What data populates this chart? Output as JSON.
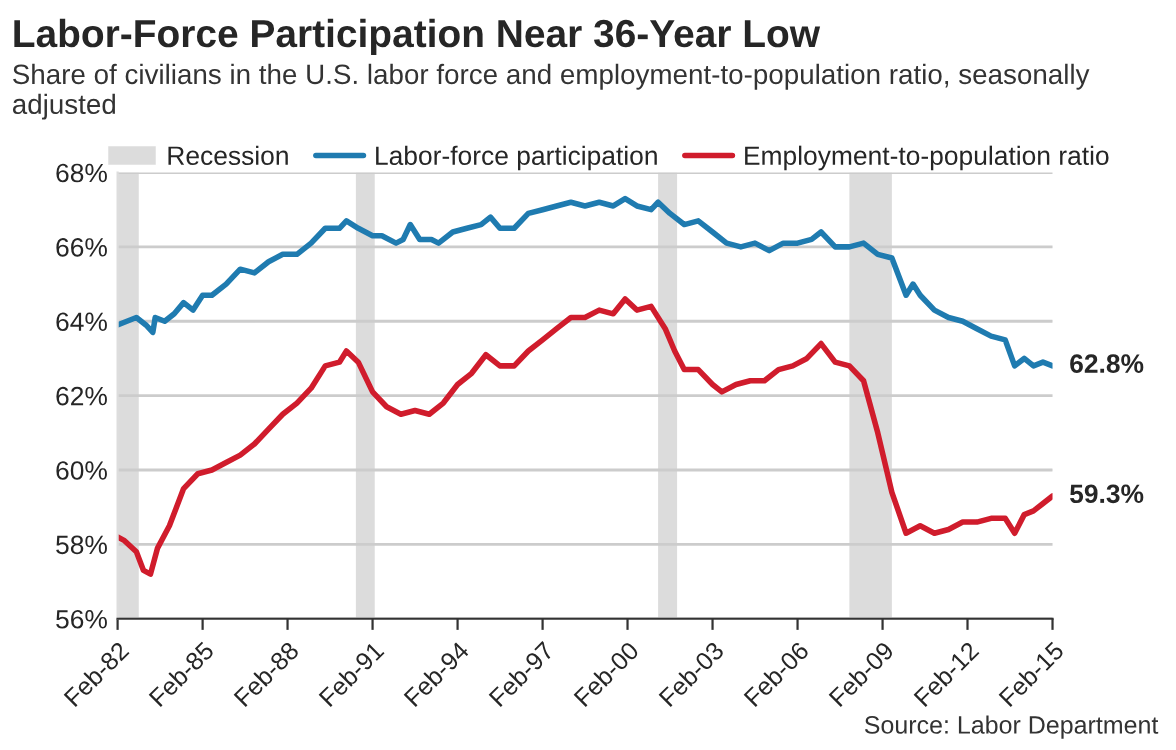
{
  "chart_data": {
    "type": "line",
    "title": "Labor-Force Participation Near 36-Year Low",
    "subtitle": "Share of civilians in the U.S. labor force and employment-to-population ratio, seasonally adjusted",
    "annotations": [
      {
        "text": "62.8%",
        "x": "2015-02",
        "y": 62.8
      },
      {
        "text": "59.3%",
        "x": "2015-02",
        "y": 59.3
      },
      "Source: Labor Department"
    ],
    "series": [
      {
        "name": "Labor-force participation",
        "color": "#1f7bb0",
        "x": [
          "1982-02",
          "1982-06",
          "1982-10",
          "1983-02",
          "1983-05",
          "1983-06",
          "1983-10",
          "1984-02",
          "1984-06",
          "1984-10",
          "1985-02",
          "1985-06",
          "1985-12",
          "1986-06",
          "1986-12",
          "1987-06",
          "1987-12",
          "1988-06",
          "1988-12",
          "1989-06",
          "1989-12",
          "1990-03",
          "1990-08",
          "1991-02",
          "1991-06",
          "1991-12",
          "1992-03",
          "1992-06",
          "1992-10",
          "1993-03",
          "1993-06",
          "1993-12",
          "1994-06",
          "1994-12",
          "1995-04",
          "1995-08",
          "1996-02",
          "1996-08",
          "1997-02",
          "1997-08",
          "1998-02",
          "1998-08",
          "1999-02",
          "1999-08",
          "2000-01",
          "2000-06",
          "2000-12",
          "2001-03",
          "2001-08",
          "2002-02",
          "2002-08",
          "2003-02",
          "2003-08",
          "2004-02",
          "2004-08",
          "2005-02",
          "2005-08",
          "2006-02",
          "2006-08",
          "2006-12",
          "2007-06",
          "2007-12",
          "2008-06",
          "2008-12",
          "2009-06",
          "2009-12",
          "2010-03",
          "2010-06",
          "2010-12",
          "2011-06",
          "2011-12",
          "2012-06",
          "2012-12",
          "2013-06",
          "2013-10",
          "2014-02",
          "2014-06",
          "2014-10",
          "2015-02"
        ],
        "values": [
          63.9,
          64.0,
          64.1,
          63.9,
          63.7,
          64.1,
          64.0,
          64.2,
          64.5,
          64.3,
          64.7,
          64.7,
          65.0,
          65.4,
          65.3,
          65.6,
          65.8,
          65.8,
          66.1,
          66.5,
          66.5,
          66.7,
          66.5,
          66.3,
          66.3,
          66.1,
          66.2,
          66.6,
          66.2,
          66.2,
          66.1,
          66.4,
          66.5,
          66.6,
          66.8,
          66.5,
          66.5,
          66.9,
          67.0,
          67.1,
          67.2,
          67.1,
          67.2,
          67.1,
          67.3,
          67.1,
          67.0,
          67.2,
          66.9,
          66.6,
          66.7,
          66.4,
          66.1,
          66.0,
          66.1,
          65.9,
          66.1,
          66.1,
          66.2,
          66.4,
          66.0,
          66.0,
          66.1,
          65.8,
          65.7,
          64.7,
          65.0,
          64.7,
          64.3,
          64.1,
          64.0,
          63.8,
          63.6,
          63.5,
          62.8,
          63.0,
          62.8,
          62.9,
          62.8
        ]
      },
      {
        "name": "Employment-to-population ratio",
        "color": "#d01c2c",
        "x": [
          "1982-02",
          "1982-05",
          "1982-10",
          "1983-01",
          "1983-04",
          "1983-07",
          "1983-12",
          "1984-06",
          "1984-12",
          "1985-06",
          "1985-12",
          "1986-06",
          "1986-12",
          "1987-06",
          "1987-12",
          "1988-06",
          "1988-12",
          "1989-06",
          "1989-12",
          "1990-03",
          "1990-08",
          "1991-02",
          "1991-08",
          "1992-02",
          "1992-08",
          "1993-02",
          "1993-08",
          "1994-02",
          "1994-08",
          "1995-02",
          "1995-08",
          "1996-02",
          "1996-08",
          "1997-02",
          "1997-08",
          "1998-02",
          "1998-08",
          "1999-02",
          "1999-08",
          "2000-01",
          "2000-06",
          "2000-12",
          "2001-06",
          "2001-10",
          "2002-02",
          "2002-08",
          "2003-02",
          "2003-06",
          "2003-12",
          "2004-06",
          "2004-12",
          "2005-06",
          "2005-12",
          "2006-06",
          "2006-12",
          "2007-06",
          "2007-12",
          "2008-06",
          "2008-12",
          "2009-06",
          "2009-12",
          "2010-06",
          "2010-12",
          "2011-06",
          "2011-12",
          "2012-06",
          "2012-12",
          "2013-06",
          "2013-10",
          "2014-02",
          "2014-06",
          "2014-10",
          "2015-02"
        ],
        "values": [
          58.2,
          58.1,
          57.8,
          57.3,
          57.2,
          57.9,
          58.5,
          59.5,
          59.9,
          60.0,
          60.2,
          60.4,
          60.7,
          61.1,
          61.5,
          61.8,
          62.2,
          62.8,
          62.9,
          63.2,
          62.9,
          62.1,
          61.7,
          61.5,
          61.6,
          61.5,
          61.8,
          62.3,
          62.6,
          63.1,
          62.8,
          62.8,
          63.2,
          63.5,
          63.8,
          64.1,
          64.1,
          64.3,
          64.2,
          64.6,
          64.3,
          64.4,
          63.8,
          63.2,
          62.7,
          62.7,
          62.3,
          62.1,
          62.3,
          62.4,
          62.4,
          62.7,
          62.8,
          63.0,
          63.4,
          62.9,
          62.8,
          62.4,
          61.0,
          59.4,
          58.3,
          58.5,
          58.3,
          58.4,
          58.6,
          58.6,
          58.7,
          58.7,
          58.3,
          58.8,
          58.9,
          59.1,
          59.3
        ]
      }
    ],
    "bands": [
      {
        "axis": "x",
        "from": "1982-02",
        "to": "1982-11",
        "label": "Recession",
        "color": "#dcdcdc"
      },
      {
        "axis": "x",
        "from": "1990-07",
        "to": "1991-03",
        "color": "#dcdcdc"
      },
      {
        "axis": "x",
        "from": "2001-03",
        "to": "2001-11",
        "color": "#dcdcdc"
      },
      {
        "axis": "x",
        "from": "2007-12",
        "to": "2009-06",
        "color": "#dcdcdc"
      }
    ],
    "xlim": [
      "1982-02",
      "2015-02"
    ],
    "xticks": [
      {
        "value": "1982-02",
        "label": "Feb-82"
      },
      {
        "value": "1985-02",
        "label": "Feb-85"
      },
      {
        "value": "1988-02",
        "label": "Feb-88"
      },
      {
        "value": "1991-02",
        "label": "Feb-91"
      },
      {
        "value": "1994-02",
        "label": "Feb-94"
      },
      {
        "value": "1997-02",
        "label": "Feb-97"
      },
      {
        "value": "2000-02",
        "label": "Feb-00"
      },
      {
        "value": "2003-02",
        "label": "Feb-03"
      },
      {
        "value": "2006-02",
        "label": "Feb-06"
      },
      {
        "value": "2009-02",
        "label": "Feb-09"
      },
      {
        "value": "2012-02",
        "label": "Feb-12"
      },
      {
        "value": "2015-02",
        "label": "Feb-15"
      }
    ],
    "ylim": [
      56,
      68
    ],
    "yticks": [
      {
        "value": 56,
        "label": "56%"
      },
      {
        "value": 58,
        "label": "58%"
      },
      {
        "value": 60,
        "label": "60%"
      },
      {
        "value": 62,
        "label": "62%"
      },
      {
        "value": 64,
        "label": "64%"
      },
      {
        "value": 66,
        "label": "66%"
      },
      {
        "value": 68,
        "label": "68%"
      }
    ],
    "grid": "y",
    "legend": "top",
    "marker": "none",
    "line_style": "solid"
  }
}
